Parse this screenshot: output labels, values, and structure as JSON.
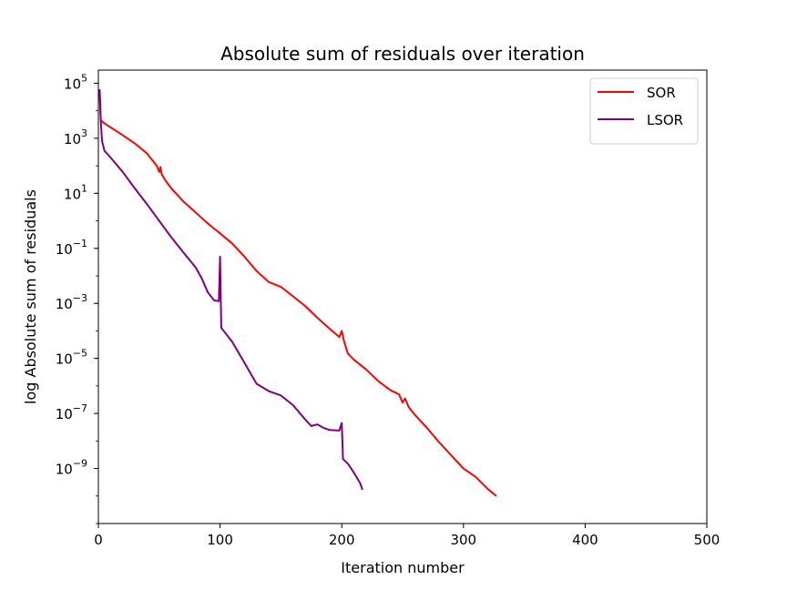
{
  "chart_data": {
    "type": "line",
    "title": "Absolute sum of residuals over iteration",
    "xlabel": "Iteration number",
    "ylabel": "log Absolute sum of residuals",
    "xlim": [
      0,
      500
    ],
    "ylim": [
      1e-11,
      300000.0
    ],
    "yscale": "log",
    "x_ticks": [
      0,
      100,
      200,
      300,
      400,
      500
    ],
    "y_ticks": [
      {
        "value": 100000.0,
        "base": "10",
        "exp": "5"
      },
      {
        "value": 1000.0,
        "base": "10",
        "exp": "3"
      },
      {
        "value": 10.0,
        "base": "10",
        "exp": "1"
      },
      {
        "value": 0.1,
        "base": "10",
        "exp": "−1"
      },
      {
        "value": 0.001,
        "base": "10",
        "exp": "−3"
      },
      {
        "value": 1e-05,
        "base": "10",
        "exp": "−5"
      },
      {
        "value": 1e-07,
        "base": "10",
        "exp": "−7"
      },
      {
        "value": 1e-09,
        "base": "10",
        "exp": "−9"
      }
    ],
    "grid": false,
    "legend_position": "top-right",
    "series": [
      {
        "name": "SOR",
        "color": "#ff0000",
        "points": [
          [
            1,
            60000
          ],
          [
            2,
            4500
          ],
          [
            5,
            3500
          ],
          [
            10,
            2500
          ],
          [
            20,
            1300
          ],
          [
            30,
            650
          ],
          [
            40,
            280
          ],
          [
            48,
            100
          ],
          [
            50,
            60
          ],
          [
            51,
            90
          ],
          [
            52,
            50
          ],
          [
            55,
            30
          ],
          [
            60,
            15
          ],
          [
            70,
            5
          ],
          [
            80,
            2
          ],
          [
            90,
            0.8
          ],
          [
            100,
            0.35
          ],
          [
            110,
            0.15
          ],
          [
            120,
            0.05
          ],
          [
            130,
            0.015
          ],
          [
            140,
            0.006
          ],
          [
            150,
            0.004
          ],
          [
            160,
            0.0018
          ],
          [
            170,
            0.0008
          ],
          [
            180,
            0.0003
          ],
          [
            190,
            0.00012
          ],
          [
            198,
            6e-05
          ],
          [
            200,
            0.0001
          ],
          [
            202,
            4e-05
          ],
          [
            205,
            1.5e-05
          ],
          [
            210,
            9e-06
          ],
          [
            220,
            4e-06
          ],
          [
            230,
            1.5e-06
          ],
          [
            240,
            7e-07
          ],
          [
            247,
            5e-07
          ],
          [
            250,
            2.5e-07
          ],
          [
            252,
            3.5e-07
          ],
          [
            255,
            1.7e-07
          ],
          [
            260,
            9e-08
          ],
          [
            270,
            3e-08
          ],
          [
            280,
            9e-09
          ],
          [
            290,
            3e-09
          ],
          [
            300,
            1e-09
          ],
          [
            310,
            5e-10
          ],
          [
            320,
            1.8e-10
          ],
          [
            327,
            1e-10
          ]
        ]
      },
      {
        "name": "LSOR",
        "color": "#800080",
        "points": [
          [
            1,
            60000
          ],
          [
            2,
            4000
          ],
          [
            3,
            800
          ],
          [
            5,
            350
          ],
          [
            10,
            200
          ],
          [
            20,
            60
          ],
          [
            30,
            15
          ],
          [
            40,
            4
          ],
          [
            50,
            1
          ],
          [
            60,
            0.25
          ],
          [
            70,
            0.07
          ],
          [
            80,
            0.02
          ],
          [
            85,
            0.008
          ],
          [
            90,
            0.0025
          ],
          [
            95,
            0.0013
          ],
          [
            99,
            0.0012
          ],
          [
            100,
            0.05
          ],
          [
            101,
            0.00013
          ],
          [
            103,
            0.0001
          ],
          [
            110,
            4e-05
          ],
          [
            120,
            7e-06
          ],
          [
            130,
            1.2e-06
          ],
          [
            140,
            6.5e-07
          ],
          [
            150,
            4.5e-07
          ],
          [
            160,
            2e-07
          ],
          [
            170,
            6e-08
          ],
          [
            175,
            3.5e-08
          ],
          [
            180,
            4e-08
          ],
          [
            185,
            3e-08
          ],
          [
            190,
            2.5e-08
          ],
          [
            198,
            2.4e-08
          ],
          [
            200,
            4.5e-08
          ],
          [
            201,
            2.2e-09
          ],
          [
            205,
            1.5e-09
          ],
          [
            210,
            7e-10
          ],
          [
            215,
            3e-10
          ],
          [
            217,
            1.7e-10
          ]
        ]
      }
    ]
  }
}
